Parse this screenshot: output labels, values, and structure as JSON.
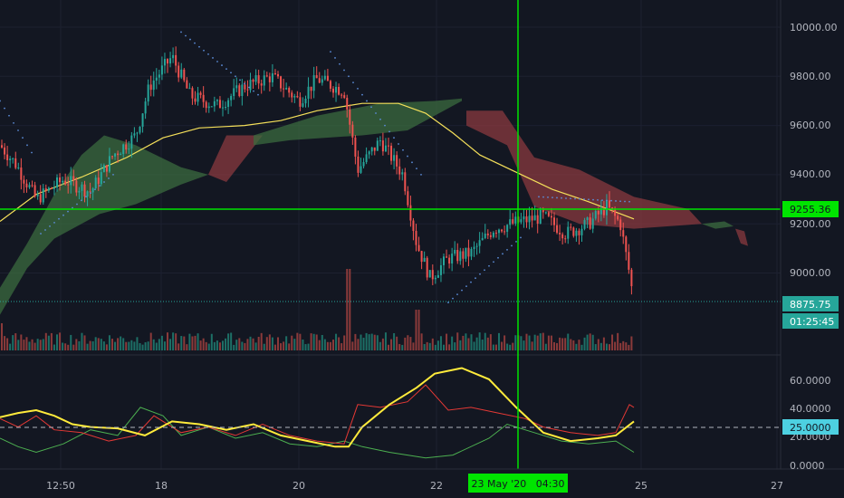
{
  "price_axis": {
    "ticks": [
      "10000.00",
      "9800.00",
      "9600.00",
      "9400.00",
      "9200.00",
      "9000.00"
    ],
    "crosshair_price": "9255.36",
    "last_price": "8875.75",
    "countdown": "01:25:45"
  },
  "indicator_axis": {
    "ticks": [
      "60.0000",
      "40.0000",
      "20.0000",
      "0.0000"
    ],
    "dashed_level": "25.0000"
  },
  "time_axis": {
    "ticks": [
      "12:50",
      "18",
      "20",
      "22",
      "25",
      "27"
    ],
    "crosshair_label": "23 May '20   04:30"
  },
  "colors": {
    "background": "#131722",
    "up": "#26a69a",
    "down": "#ef5350",
    "crosshair": "#00e400",
    "ma": "#f5e05a",
    "cloud_bull": "#3b6b3f",
    "cloud_bear": "#8a3a3f",
    "psar": "#5b8bd6",
    "adx": "#ffeb3b",
    "di_plus": "#4caf50",
    "di_minus": "#e53935"
  },
  "chart_data": [
    {
      "type": "candlestick",
      "ylim": [
        8780,
        10080
      ],
      "indicators": [
        "moving-average",
        "ichimoku-cloud",
        "parabolic-sar",
        "volume"
      ],
      "last_price": 8875.75,
      "crosshair_price": 9255.36
    },
    {
      "type": "line",
      "ylim": [
        -5,
        75
      ],
      "series_colors": [
        "#ffeb3b",
        "#e53935",
        "#4caf50"
      ],
      "dashed_level": 25
    }
  ]
}
